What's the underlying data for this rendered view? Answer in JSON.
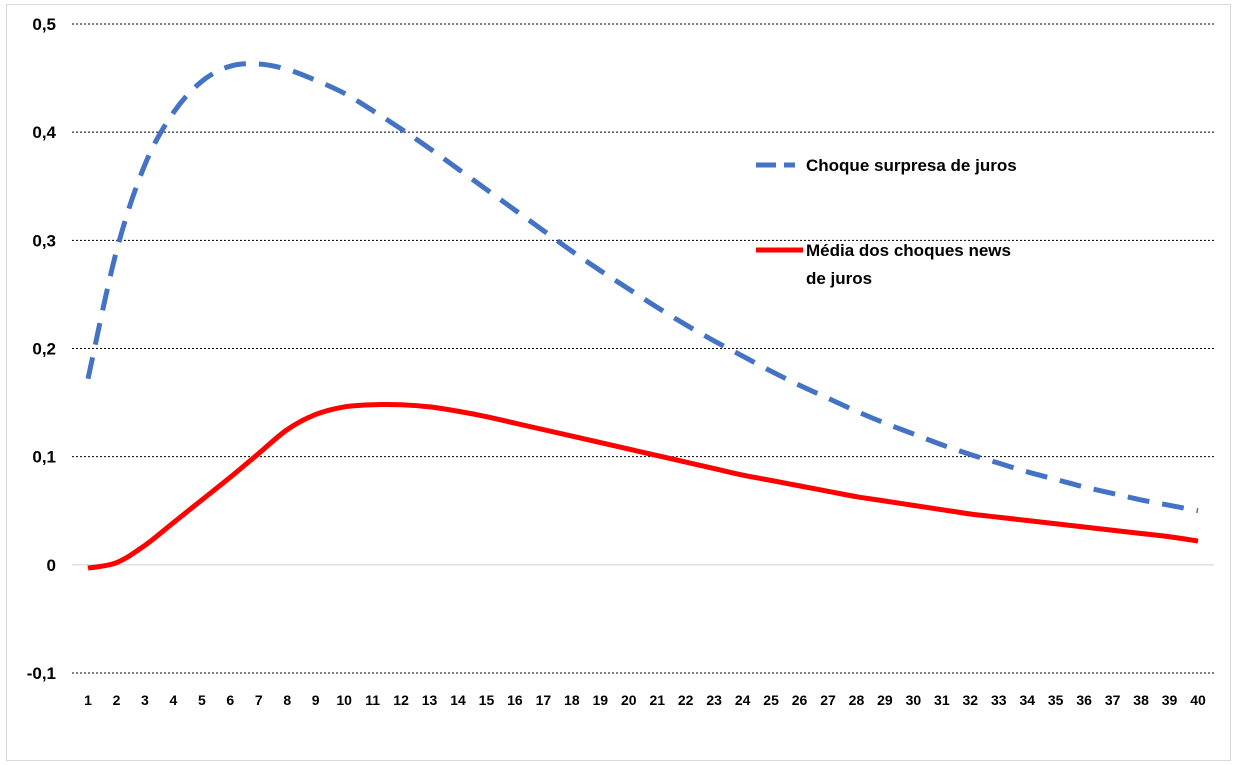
{
  "chart_data": {
    "type": "line",
    "title": "",
    "xlabel": "",
    "ylabel": "",
    "x": [
      1,
      2,
      3,
      4,
      5,
      6,
      7,
      8,
      9,
      10,
      11,
      12,
      13,
      14,
      15,
      16,
      17,
      18,
      19,
      20,
      21,
      22,
      23,
      24,
      25,
      26,
      27,
      28,
      29,
      30,
      31,
      32,
      33,
      34,
      35,
      36,
      37,
      38,
      39,
      40
    ],
    "ylim": [
      -0.1,
      0.5
    ],
    "yticks": [
      -0.1,
      0,
      0.1,
      0.2,
      0.3,
      0.4,
      0.5
    ],
    "ytick_labels": [
      "-0,1",
      "0",
      "0,1",
      "0,2",
      "0,3",
      "0,4",
      "0,5"
    ],
    "grid": "horizontal dotted",
    "legend_position": "right",
    "series": [
      {
        "name": "Choque surpresa de juros",
        "color": "#4472C4",
        "style": "dashed",
        "values": [
          0.172,
          0.29,
          0.37,
          0.418,
          0.447,
          0.461,
          0.463,
          0.458,
          0.448,
          0.436,
          0.42,
          0.403,
          0.385,
          0.366,
          0.347,
          0.328,
          0.309,
          0.29,
          0.272,
          0.255,
          0.238,
          0.222,
          0.207,
          0.193,
          0.179,
          0.166,
          0.154,
          0.142,
          0.131,
          0.121,
          0.111,
          0.102,
          0.094,
          0.086,
          0.079,
          0.072,
          0.066,
          0.06,
          0.055,
          0.05
        ]
      },
      {
        "name": "Média dos choques news de juros",
        "name_lines": [
          "Média dos choques news",
          "de juros"
        ],
        "color": "#FF0000",
        "style": "solid",
        "values": [
          -0.003,
          0.002,
          0.018,
          0.039,
          0.06,
          0.081,
          0.103,
          0.125,
          0.139,
          0.146,
          0.148,
          0.148,
          0.146,
          0.142,
          0.137,
          0.131,
          0.125,
          0.119,
          0.113,
          0.107,
          0.101,
          0.095,
          0.089,
          0.083,
          0.078,
          0.073,
          0.068,
          0.063,
          0.059,
          0.055,
          0.051,
          0.047,
          0.044,
          0.041,
          0.038,
          0.035,
          0.032,
          0.029,
          0.026,
          0.022
        ]
      }
    ]
  }
}
